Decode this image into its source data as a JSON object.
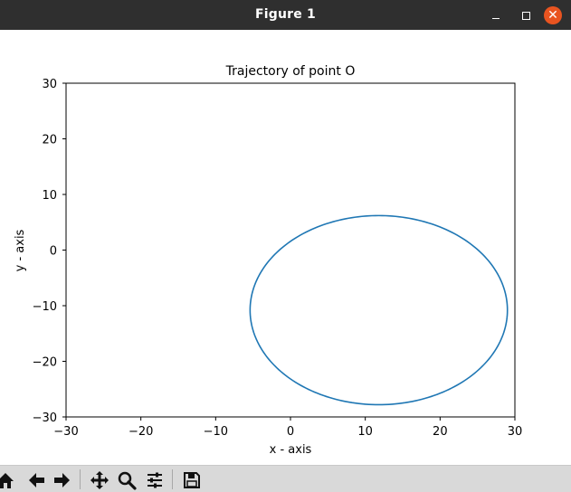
{
  "window": {
    "title": "Figure 1"
  },
  "chart_data": {
    "type": "line",
    "title": "Trajectory of point O",
    "xlabel": "x - axis",
    "ylabel": "y - axis",
    "xlim": [
      -30,
      30
    ],
    "ylim": [
      -30,
      30
    ],
    "xticks": [
      -30,
      -20,
      -10,
      0,
      10,
      20,
      30
    ],
    "yticks": [
      -30,
      -20,
      -10,
      0,
      10,
      20,
      30
    ],
    "xtick_labels": [
      "−30",
      "−20",
      "−10",
      "0",
      "10",
      "20",
      "30"
    ],
    "ytick_labels": [
      "−30",
      "−20",
      "−10",
      "0",
      "10",
      "20",
      "30"
    ],
    "grid": false,
    "series": [
      {
        "shape": "ellipse",
        "center": [
          11.8,
          -10.8
        ],
        "radius_x": 17.2,
        "radius_y": 17.0,
        "color": "#1f77b4"
      }
    ]
  },
  "toolbar": {
    "tools": [
      "home-icon",
      "back-icon",
      "forward-icon",
      "pan-icon",
      "zoom-icon",
      "configure-subplots-icon",
      "save-icon"
    ]
  }
}
